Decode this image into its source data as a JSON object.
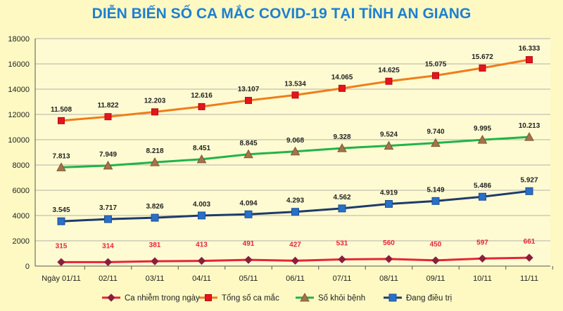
{
  "chart_data": {
    "type": "line",
    "title": "DIỄN BIẾN SỐ CA MẮC COVID-19 TẠI TỈNH AN GIANG",
    "categories": [
      "Ngày 01/11",
      "02/11",
      "03/11",
      "04/11",
      "05/11",
      "06/11",
      "07/11",
      "08/11",
      "09/11",
      "10/11",
      "11/11"
    ],
    "ylim": [
      0,
      18000
    ],
    "yticks": [
      "0",
      "2000",
      "4000",
      "6000",
      "8000",
      "10000",
      "12000",
      "14000",
      "16000",
      "18000"
    ],
    "grid": true,
    "legend": "bottom",
    "series": [
      {
        "name": "Ca nhiễm trong ngày",
        "color": "#e8233a",
        "marker": "diamond",
        "label_color": "#e8233a",
        "values": [
          315,
          314,
          381,
          413,
          491,
          427,
          531,
          560,
          450,
          597,
          661
        ],
        "labels": [
          "315",
          "314",
          "381",
          "413",
          "491",
          "427",
          "531",
          "560",
          "450",
          "597",
          "661"
        ]
      },
      {
        "name": "Tổng số ca mắc",
        "color": "#f07d1a",
        "marker": "square-red",
        "label_color": "#222222",
        "values": [
          11508,
          11822,
          12203,
          12616,
          13107,
          13534,
          14065,
          14625,
          15075,
          15672,
          16333
        ],
        "labels": [
          "11.508",
          "11.822",
          "12.203",
          "12.616",
          "13.107",
          "13.534",
          "14.065",
          "14.625",
          "15.075",
          "15.672",
          "16.333"
        ]
      },
      {
        "name": "Số khỏi bệnh",
        "color": "#22b34a",
        "marker": "triangle",
        "label_color": "#222222",
        "values": [
          7813,
          7949,
          8218,
          8451,
          8845,
          9068,
          9328,
          9524,
          9740,
          9995,
          10213
        ],
        "labels": [
          "7.813",
          "7.949",
          "8.218",
          "8.451",
          "8.845",
          "9.068",
          "9.328",
          "9.524",
          "9.740",
          "9.995",
          "10.213"
        ]
      },
      {
        "name": "Đang điều trị",
        "color": "#1f3a6b",
        "marker": "square-blue",
        "label_color": "#222222",
        "values": [
          3545,
          3717,
          3826,
          4003,
          4094,
          4293,
          4562,
          4919,
          5149,
          5486,
          5927
        ],
        "labels": [
          "3.545",
          "3.717",
          "3.826",
          "4.003",
          "4.094",
          "4.293",
          "4.562",
          "4.919",
          "5.149",
          "5.486",
          "5.927"
        ]
      }
    ]
  }
}
